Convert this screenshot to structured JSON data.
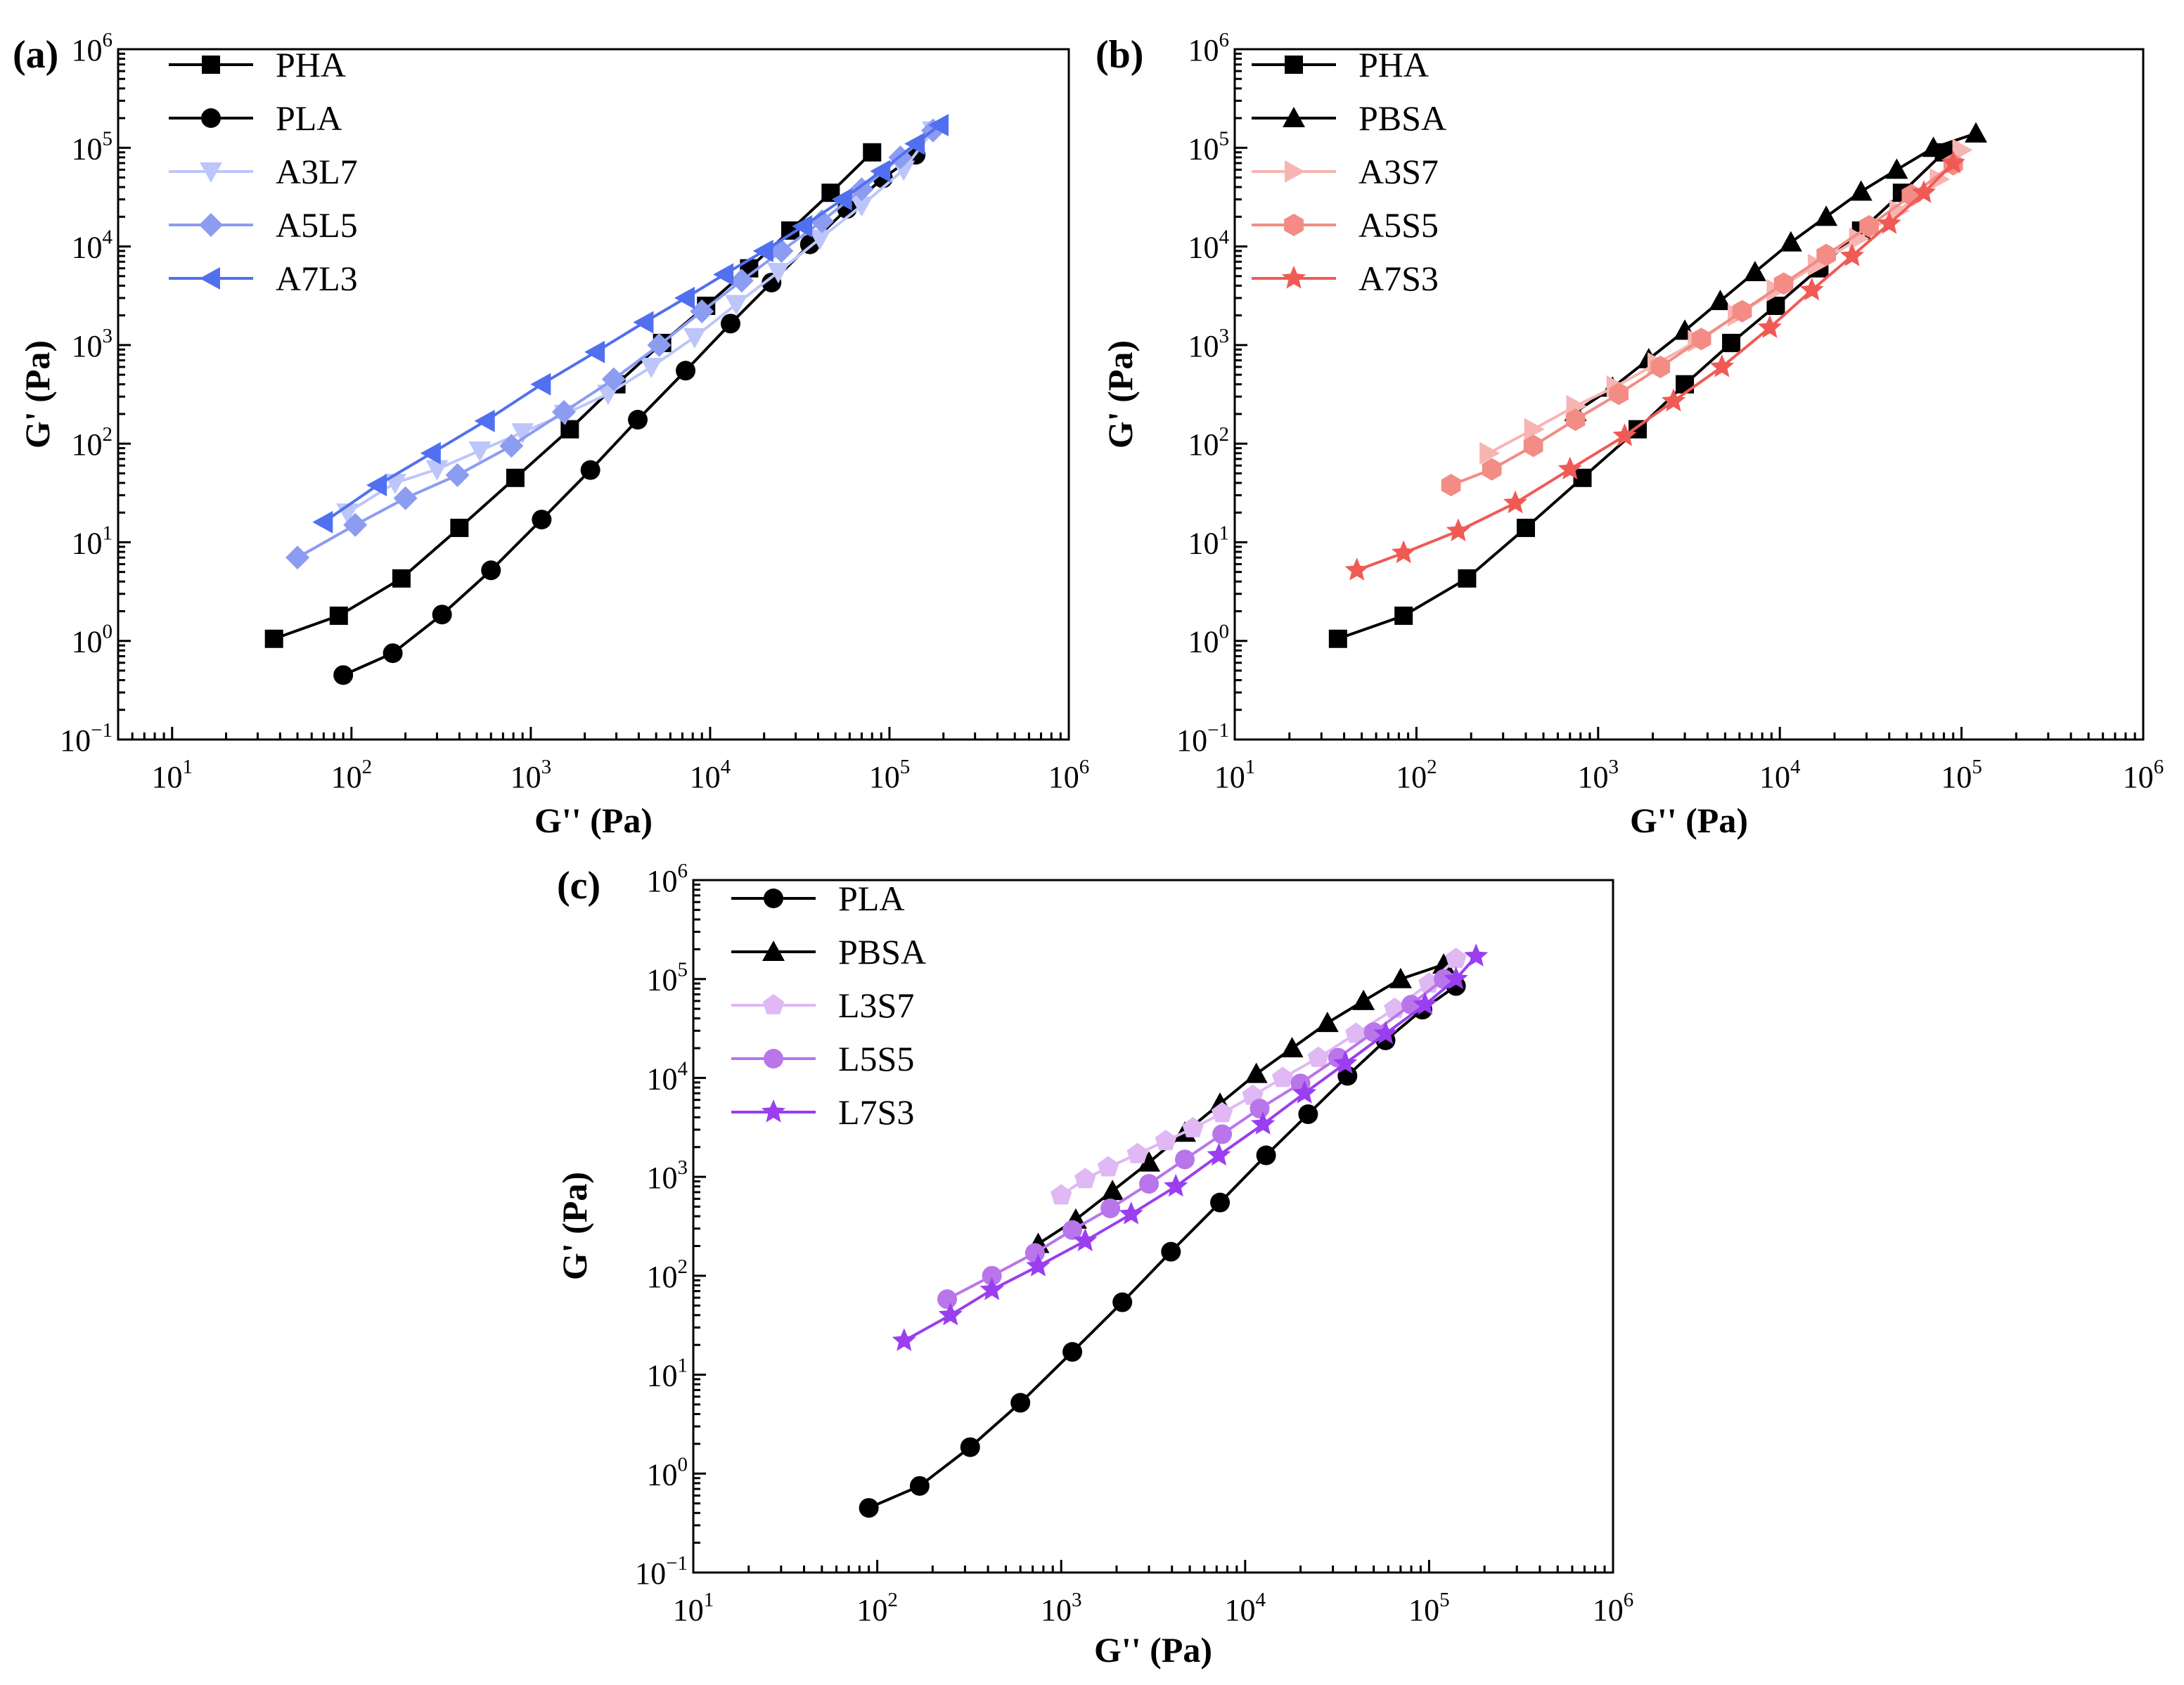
{
  "figure": {
    "panels": [
      {
        "label": "(a)",
        "xlabel": "G'' (Pa)",
        "ylabel": "G' (Pa)"
      },
      {
        "label": "(b)",
        "xlabel": "G'' (Pa)",
        "ylabel": "G' (Pa)"
      },
      {
        "label": "(c)",
        "xlabel": "G'' (Pa)",
        "ylabel": "G' (Pa)"
      }
    ]
  },
  "chart_data": [
    {
      "type": "scatter",
      "title": "(a)",
      "xlabel": "G'' (Pa)",
      "ylabel": "G' (Pa)",
      "xscale": "log",
      "yscale": "log",
      "xlim": [
        5,
        1000000
      ],
      "ylim": [
        0.1,
        1000000
      ],
      "x_ticks": [
        {
          "base": "10",
          "exp": "1"
        },
        {
          "base": "10",
          "exp": "2"
        },
        {
          "base": "10",
          "exp": "3"
        },
        {
          "base": "10",
          "exp": "4"
        },
        {
          "base": "10",
          "exp": "5"
        },
        {
          "base": "10",
          "exp": "6"
        }
      ],
      "y_ticks": [
        {
          "base": "10",
          "exp": "−1"
        },
        {
          "base": "10",
          "exp": "0"
        },
        {
          "base": "10",
          "exp": "1"
        },
        {
          "base": "10",
          "exp": "2"
        },
        {
          "base": "10",
          "exp": "3"
        },
        {
          "base": "10",
          "exp": "4"
        },
        {
          "base": "10",
          "exp": "5"
        },
        {
          "base": "10",
          "exp": "6"
        }
      ],
      "legend_position": "top-left",
      "series": [
        {
          "name": "PHA",
          "color": "#000000",
          "marker": "square",
          "x": [
            37,
            85,
            190,
            400,
            820,
            1650,
            3000,
            5400,
            9500,
            16500,
            28000,
            47000,
            80000
          ],
          "y": [
            1.05,
            1.8,
            4.3,
            14,
            45,
            140,
            400,
            1050,
            2500,
            6000,
            14500,
            35000,
            90000
          ]
        },
        {
          "name": "PLA",
          "color": "#000000",
          "marker": "circle",
          "x": [
            90,
            170,
            320,
            600,
            1150,
            2150,
            3950,
            7300,
            13000,
            22000,
            36000,
            58000,
            92000,
            140000
          ],
          "y": [
            0.45,
            0.75,
            1.85,
            5.2,
            17,
            54,
            175,
            550,
            1650,
            4300,
            10500,
            24000,
            49000,
            85000
          ]
        },
        {
          "name": "A3L7",
          "color": "#bdc6fa",
          "marker": "triangle-down",
          "x": [
            95,
            175,
            300,
            520,
            900,
            1550,
            2700,
            4700,
            8200,
            14000,
            24000,
            41000,
            70000,
            120000,
            175000
          ],
          "y": [
            20,
            40,
            55,
            85,
            130,
            200,
            320,
            600,
            1200,
            2600,
            5500,
            12000,
            26000,
            60000,
            150000
          ]
        },
        {
          "name": "A5L5",
          "color": "#8c9cf1",
          "marker": "diamond",
          "x": [
            50,
            105,
            200,
            390,
            780,
            1530,
            2900,
            5200,
            9000,
            15000,
            25000,
            42000,
            70000,
            115000,
            175000
          ],
          "y": [
            7,
            15,
            28,
            48,
            95,
            210,
            450,
            1000,
            2200,
            4500,
            9000,
            18000,
            38000,
            80000,
            150000
          ]
        },
        {
          "name": "A7L3",
          "color": "#5170ef",
          "marker": "triangle-left",
          "x": [
            70,
            140,
            280,
            560,
            1150,
            2300,
            4300,
            7300,
            12000,
            20000,
            33000,
            55000,
            90000,
            140000,
            190000
          ],
          "y": [
            16,
            38,
            80,
            170,
            400,
            850,
            1700,
            3000,
            5200,
            9000,
            16000,
            30000,
            58000,
            110000,
            170000
          ]
        }
      ]
    },
    {
      "type": "scatter",
      "title": "(b)",
      "xlabel": "G'' (Pa)",
      "ylabel": "G' (Pa)",
      "xscale": "log",
      "yscale": "log",
      "xlim": [
        10,
        1000000
      ],
      "ylim": [
        0.1,
        1000000
      ],
      "x_ticks": [
        {
          "base": "10",
          "exp": "1"
        },
        {
          "base": "10",
          "exp": "2"
        },
        {
          "base": "10",
          "exp": "3"
        },
        {
          "base": "10",
          "exp": "4"
        },
        {
          "base": "10",
          "exp": "5"
        },
        {
          "base": "10",
          "exp": "6"
        }
      ],
      "y_ticks": [
        {
          "base": "10",
          "exp": "−1"
        },
        {
          "base": "10",
          "exp": "0"
        },
        {
          "base": "10",
          "exp": "1"
        },
        {
          "base": "10",
          "exp": "2"
        },
        {
          "base": "10",
          "exp": "3"
        },
        {
          "base": "10",
          "exp": "4"
        },
        {
          "base": "10",
          "exp": "5"
        },
        {
          "base": "10",
          "exp": "6"
        }
      ],
      "legend_position": "top-left",
      "series": [
        {
          "name": "PHA",
          "color": "#000000",
          "marker": "square",
          "x": [
            37,
            85,
            190,
            400,
            820,
            1650,
            3000,
            5400,
            9500,
            16500,
            28000,
            47000,
            80000
          ],
          "y": [
            1.05,
            1.8,
            4.3,
            14,
            45,
            140,
            400,
            1050,
            2500,
            6000,
            14500,
            35000,
            90000
          ]
        },
        {
          "name": "PBSA",
          "color": "#000000",
          "marker": "triangle-up",
          "x": [
            750,
            1200,
            1900,
            3000,
            4700,
            7300,
            11500,
            18000,
            28000,
            44000,
            70000,
            120000
          ],
          "y": [
            210,
            370,
            720,
            1400,
            2800,
            5500,
            11000,
            20000,
            36000,
            60000,
            100000,
            140000
          ]
        },
        {
          "name": "A3S7",
          "color": "#f7b5b2",
          "marker": "triangle-right",
          "x": [
            250,
            440,
            750,
            1250,
            2100,
            3500,
            5800,
            9500,
            16000,
            27000,
            45000,
            75000,
            100000
          ],
          "y": [
            80,
            140,
            240,
            380,
            650,
            1100,
            2000,
            3600,
            6500,
            12000,
            23000,
            48000,
            95000
          ]
        },
        {
          "name": "A5S5",
          "color": "#f28c85",
          "marker": "hexagon",
          "x": [
            155,
            260,
            440,
            750,
            1300,
            2200,
            3700,
            6200,
            10500,
            18000,
            31000,
            53000,
            90000
          ],
          "y": [
            38,
            55,
            95,
            175,
            320,
            600,
            1150,
            2200,
            4200,
            8200,
            16000,
            33000,
            68000
          ]
        },
        {
          "name": "A7S3",
          "color": "#f05a55",
          "marker": "star",
          "x": [
            47,
            85,
            170,
            350,
            700,
            1400,
            2600,
            4800,
            8800,
            15000,
            25000,
            40000,
            62000,
            90000
          ],
          "y": [
            5.2,
            7.8,
            13,
            25,
            55,
            120,
            270,
            600,
            1500,
            3600,
            8000,
            17000,
            35000,
            70000
          ]
        }
      ]
    },
    {
      "type": "scatter",
      "title": "(c)",
      "xlabel": "G'' (Pa)",
      "ylabel": "G' (Pa)",
      "xscale": "log",
      "yscale": "log",
      "xlim": [
        10,
        1000000
      ],
      "ylim": [
        0.1,
        1000000
      ],
      "x_ticks": [
        {
          "base": "10",
          "exp": "1"
        },
        {
          "base": "10",
          "exp": "2"
        },
        {
          "base": "10",
          "exp": "3"
        },
        {
          "base": "10",
          "exp": "4"
        },
        {
          "base": "10",
          "exp": "5"
        },
        {
          "base": "10",
          "exp": "6"
        }
      ],
      "y_ticks": [
        {
          "base": "10",
          "exp": "−1"
        },
        {
          "base": "10",
          "exp": "0"
        },
        {
          "base": "10",
          "exp": "1"
        },
        {
          "base": "10",
          "exp": "2"
        },
        {
          "base": "10",
          "exp": "3"
        },
        {
          "base": "10",
          "exp": "4"
        },
        {
          "base": "10",
          "exp": "5"
        },
        {
          "base": "10",
          "exp": "6"
        }
      ],
      "legend_position": "top-left",
      "series": [
        {
          "name": "PLA",
          "color": "#000000",
          "marker": "circle",
          "x": [
            90,
            170,
            320,
            600,
            1150,
            2150,
            3950,
            7300,
            13000,
            22000,
            36000,
            58000,
            92000,
            140000
          ],
          "y": [
            0.45,
            0.75,
            1.85,
            5.2,
            17,
            54,
            175,
            550,
            1650,
            4300,
            10500,
            24000,
            49000,
            85000
          ]
        },
        {
          "name": "PBSA",
          "color": "#000000",
          "marker": "triangle-up",
          "x": [
            750,
            1200,
            1900,
            3000,
            4700,
            7300,
            11500,
            18000,
            28000,
            44000,
            70000,
            120000
          ],
          "y": [
            210,
            370,
            720,
            1400,
            2800,
            5500,
            11000,
            20000,
            36000,
            60000,
            100000,
            140000
          ]
        },
        {
          "name": "L3S7",
          "color": "#dfb8f4",
          "marker": "pentagon",
          "x": [
            1000,
            1350,
            1800,
            2600,
            3700,
            5200,
            7500,
            11000,
            16000,
            25000,
            40000,
            65000,
            100000,
            140000
          ],
          "y": [
            650,
            950,
            1250,
            1700,
            2300,
            3100,
            4400,
            6600,
            10000,
            16000,
            28000,
            50000,
            90000,
            160000
          ]
        },
        {
          "name": "L5S5",
          "color": "#b975ea",
          "marker": "circle",
          "x": [
            240,
            420,
            720,
            1150,
            1850,
            3000,
            4700,
            7500,
            12000,
            20000,
            32000,
            50000,
            80000,
            120000
          ],
          "y": [
            58,
            100,
            170,
            290,
            480,
            850,
            1500,
            2700,
            4900,
            8800,
            16000,
            29000,
            55000,
            100000
          ]
        },
        {
          "name": "L7S3",
          "color": "#9a3ef0",
          "marker": "star",
          "x": [
            140,
            250,
            420,
            750,
            1350,
            2400,
            4200,
            7200,
            12500,
            21000,
            35000,
            58000,
            95000,
            140000,
            180000
          ],
          "y": [
            22,
            40,
            72,
            125,
            225,
            420,
            800,
            1650,
            3400,
            7000,
            14000,
            28000,
            55000,
            100000,
            170000
          ]
        }
      ]
    }
  ]
}
